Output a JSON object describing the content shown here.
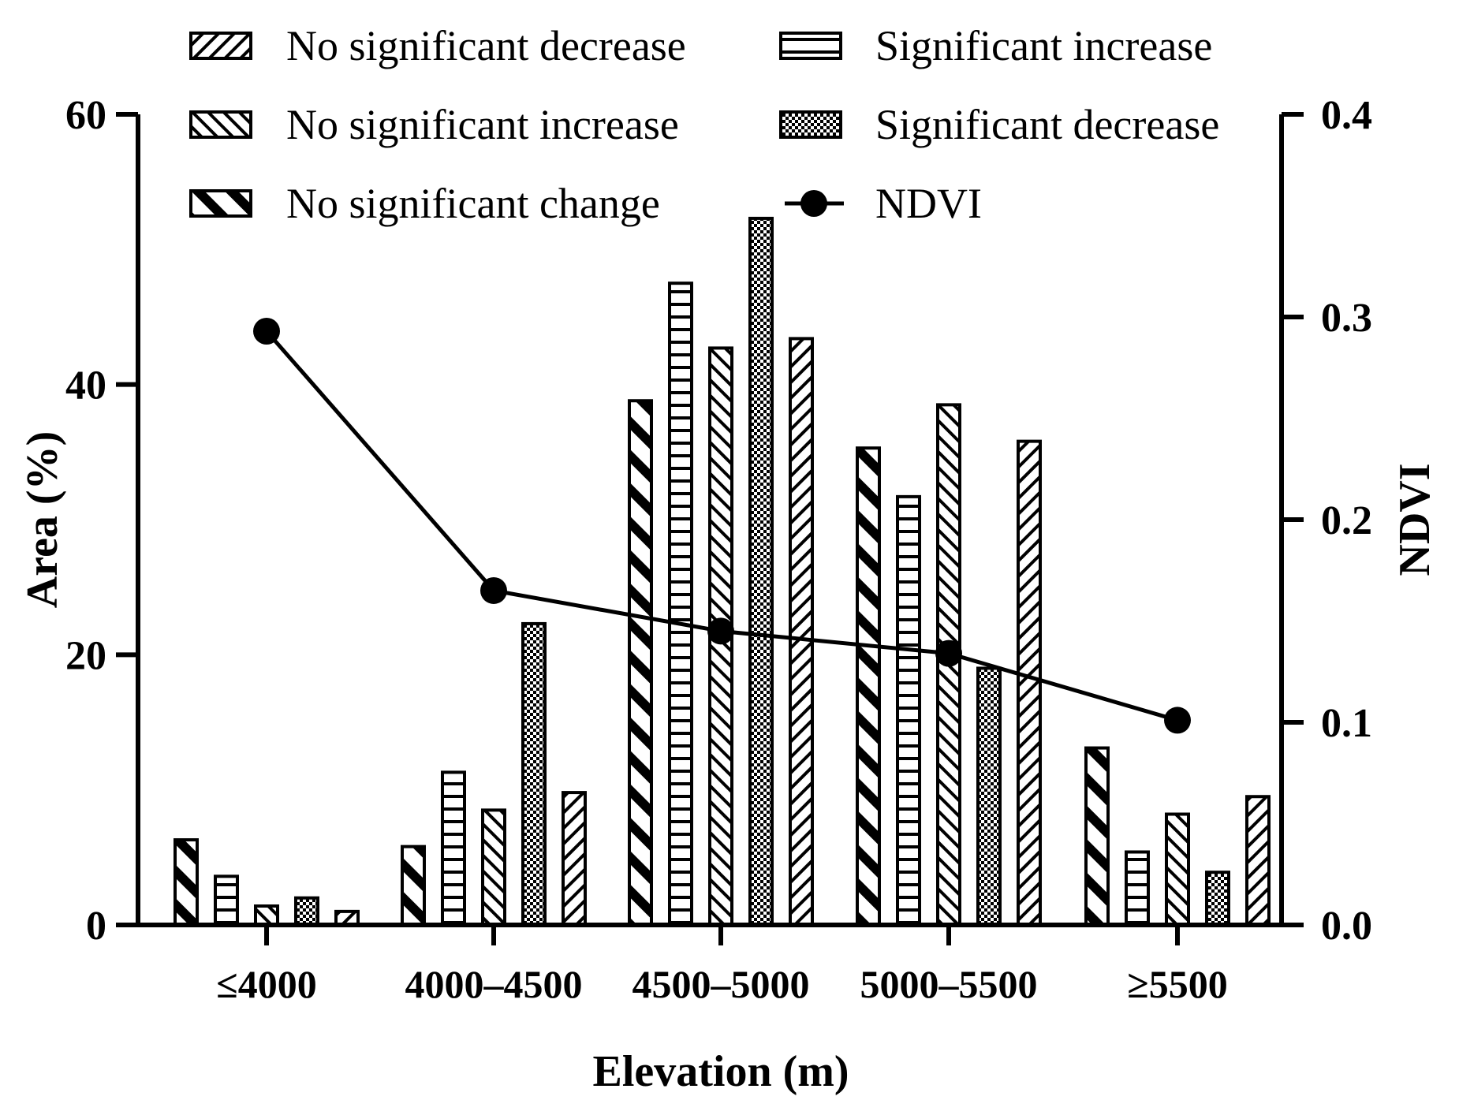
{
  "chart_data": {
    "type": "bar",
    "xlabel": "Elevation (m)",
    "ylabel": "Area (%)",
    "y2label": "NDVI",
    "ylim": [
      0,
      60
    ],
    "y2lim": [
      0.0,
      0.4
    ],
    "yticks": [
      "0",
      "20",
      "40",
      "60"
    ],
    "y2ticks": [
      "0.0",
      "0.1",
      "0.2",
      "0.3",
      "0.4"
    ],
    "categories": [
      "≤4000",
      "4000–4500",
      "4500–5000",
      "5000–5500",
      "≥5500"
    ],
    "legend_position": "top",
    "series": [
      {
        "name": "No significant change",
        "pattern": "wide-diagonal",
        "values": [
          6.3,
          5.8,
          38.8,
          35.3,
          13.1
        ]
      },
      {
        "name": "Significant increase",
        "pattern": "horizontal",
        "values": [
          3.6,
          11.3,
          47.5,
          31.7,
          5.4
        ]
      },
      {
        "name": "No significant increase",
        "pattern": "diagonal",
        "values": [
          1.4,
          8.5,
          42.7,
          38.5,
          8.2
        ]
      },
      {
        "name": "Significant decrease",
        "pattern": "checker",
        "values": [
          2.0,
          22.3,
          52.3,
          19.0,
          3.9
        ]
      },
      {
        "name": "No significant decrease",
        "pattern": "back-diagonal",
        "values": [
          1.0,
          9.8,
          43.4,
          35.8,
          9.5
        ]
      }
    ],
    "line_series": {
      "name": "NDVI",
      "axis": "right",
      "values": [
        0.293,
        0.165,
        0.145,
        0.134,
        0.101
      ]
    },
    "legend": [
      {
        "label": "No significant decrease",
        "pattern": "back-diagonal"
      },
      {
        "label": "Significant increase",
        "pattern": "horizontal"
      },
      {
        "label": "No significant increase",
        "pattern": "diagonal"
      },
      {
        "label": "Significant decrease",
        "pattern": "checker"
      },
      {
        "label": "No significant change",
        "pattern": "wide-diagonal"
      },
      {
        "label": "NDVI",
        "pattern": "line-marker"
      }
    ]
  }
}
